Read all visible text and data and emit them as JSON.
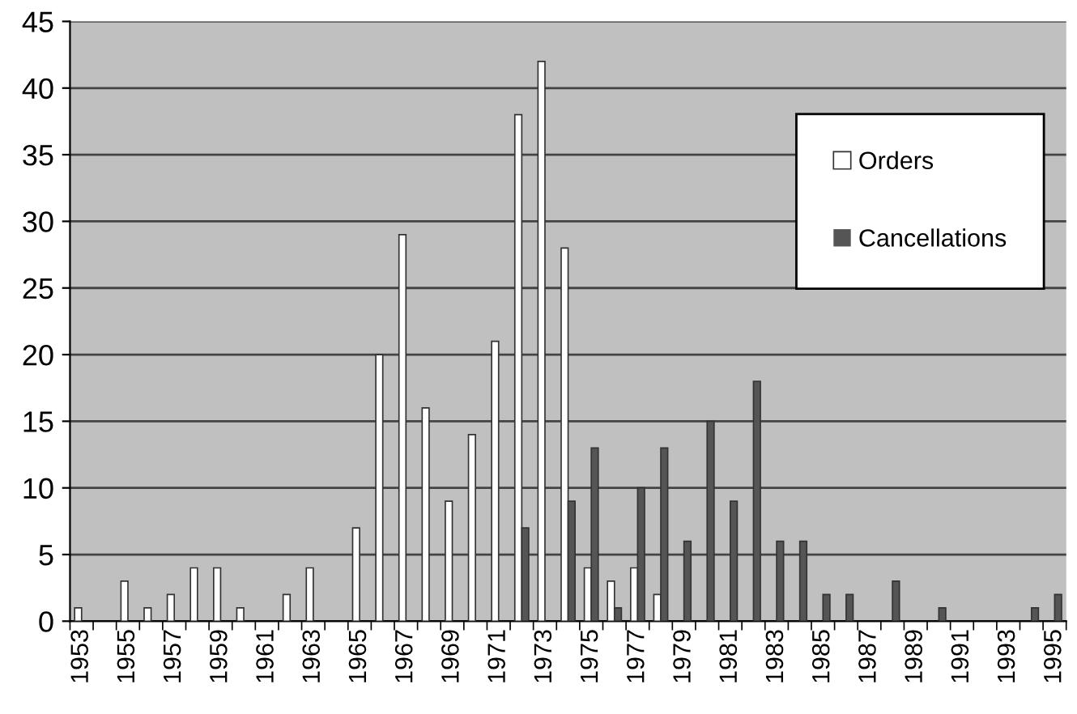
{
  "chart_data": {
    "type": "bar",
    "categories": [
      "1953",
      null,
      "1955",
      null,
      "1957",
      null,
      "1959",
      null,
      "1961",
      null,
      "1963",
      null,
      "1965",
      null,
      "1967",
      null,
      "1969",
      null,
      "1971",
      null,
      "1973",
      null,
      "1975",
      null,
      "1977",
      null,
      "1979",
      null,
      "1981",
      null,
      "1983",
      null,
      "1985",
      null,
      "1987",
      null,
      "1989",
      null,
      "1991",
      null,
      "1993",
      null,
      "1995"
    ],
    "series": [
      {
        "name": "Orders",
        "color": "#ffffff",
        "values": [
          1,
          0,
          3,
          1,
          2,
          4,
          4,
          1,
          0,
          2,
          4,
          0,
          7,
          20,
          29,
          16,
          9,
          14,
          21,
          38,
          42,
          28,
          4,
          3,
          4,
          2,
          0,
          0,
          0,
          0,
          0,
          0,
          0,
          0,
          0,
          0,
          0,
          0,
          0,
          0,
          0,
          0,
          0
        ]
      },
      {
        "name": "Cancellations",
        "color": "#555555",
        "values": [
          0,
          0,
          0,
          0,
          0,
          0,
          0,
          0,
          0,
          0,
          0,
          0,
          0,
          0,
          0,
          0,
          0,
          0,
          0,
          7,
          0,
          9,
          13,
          1,
          10,
          13,
          6,
          15,
          9,
          18,
          6,
          6,
          2,
          2,
          0,
          3,
          0,
          1,
          0,
          0,
          0,
          1,
          2
        ]
      }
    ],
    "ylim": [
      0,
      45
    ],
    "yticks": [
      0,
      5,
      10,
      15,
      20,
      25,
      30,
      35,
      40,
      45
    ],
    "grid": "y",
    "legend": "right"
  }
}
